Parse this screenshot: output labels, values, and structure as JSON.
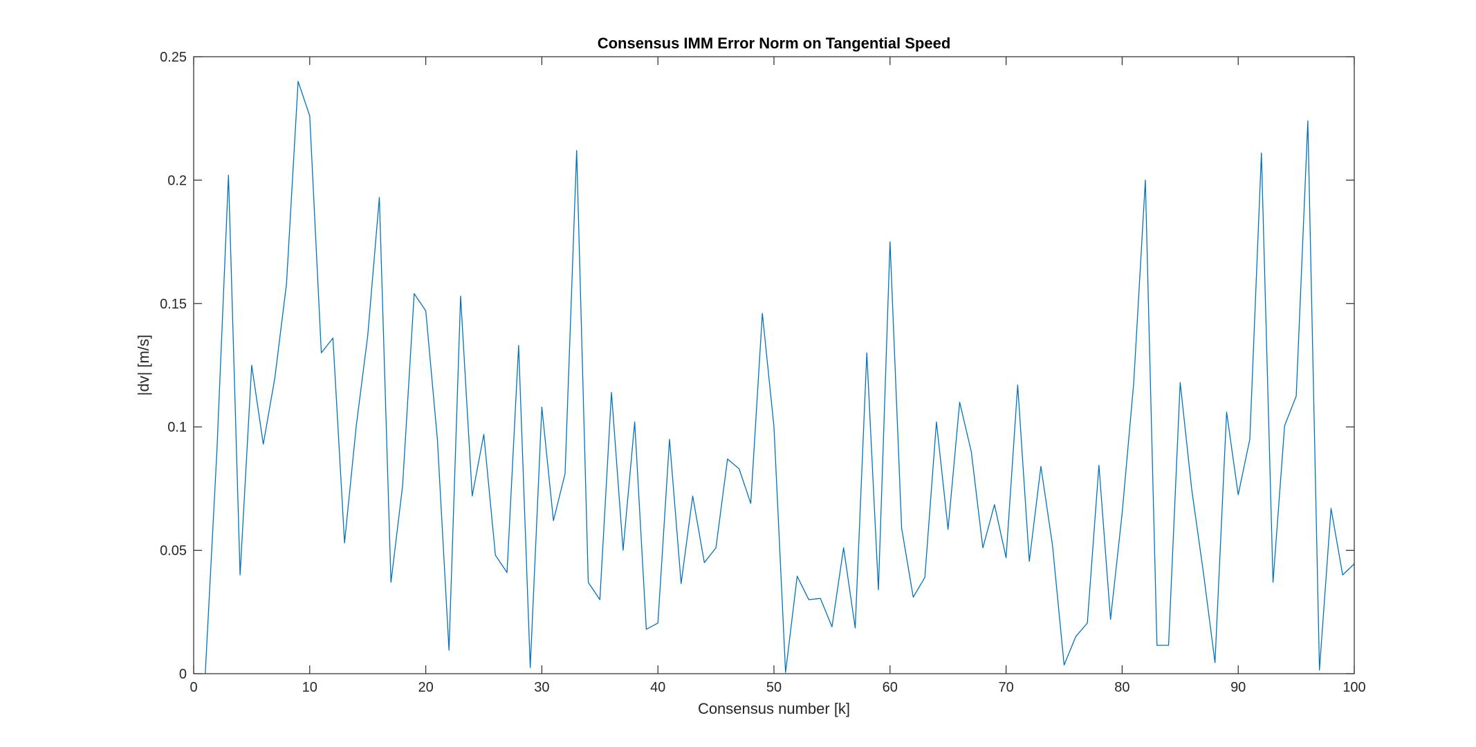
{
  "chart_data": {
    "type": "line",
    "title": "Consensus IMM Error Norm on Tangential Speed",
    "xlabel": "Consensus number [k]",
    "ylabel": "|dv| [m/s]",
    "xlim": [
      0,
      100
    ],
    "ylim": [
      0,
      0.25
    ],
    "xticks": [
      0,
      10,
      20,
      30,
      40,
      50,
      60,
      70,
      80,
      90,
      100
    ],
    "xtick_labels": [
      "0",
      "10",
      "20",
      "30",
      "40",
      "50",
      "60",
      "70",
      "80",
      "90",
      "100"
    ],
    "yticks": [
      0,
      0.05,
      0.1,
      0.15,
      0.2,
      0.25
    ],
    "ytick_labels": [
      "0",
      "0.05",
      "0.1",
      "0.15",
      "0.2",
      "0.25"
    ],
    "grid": false,
    "box": true,
    "series": [
      {
        "color": "#0072BD",
        "x": [
          1,
          2,
          3,
          4,
          5,
          6,
          7,
          8,
          9,
          10,
          11,
          12,
          13,
          14,
          15,
          16,
          17,
          18,
          19,
          20,
          21,
          22,
          23,
          24,
          25,
          26,
          27,
          28,
          29,
          30,
          31,
          32,
          33,
          34,
          35,
          36,
          37,
          38,
          39,
          40,
          41,
          42,
          43,
          44,
          45,
          46,
          47,
          48,
          49,
          50,
          51,
          52,
          53,
          54,
          55,
          56,
          57,
          58,
          59,
          60,
          61,
          62,
          63,
          64,
          65,
          66,
          67,
          68,
          69,
          70,
          71,
          72,
          73,
          74,
          75,
          76,
          77,
          78,
          79,
          80,
          81,
          82,
          83,
          84,
          85,
          86,
          87,
          88,
          89,
          90,
          91,
          92,
          93,
          94,
          95,
          96,
          97,
          98,
          99,
          100
        ],
        "y": [
          0.0,
          0.09,
          0.202,
          0.04,
          0.125,
          0.093,
          0.12,
          0.158,
          0.24,
          0.226,
          0.13,
          0.136,
          0.053,
          0.1,
          0.137,
          0.193,
          0.037,
          0.076,
          0.154,
          0.147,
          0.095,
          0.0095,
          0.153,
          0.072,
          0.097,
          0.048,
          0.041,
          0.133,
          0.0025,
          0.108,
          0.062,
          0.081,
          0.212,
          0.037,
          0.03,
          0.114,
          0.05,
          0.102,
          0.018,
          0.0205,
          0.095,
          0.0365,
          0.072,
          0.045,
          0.051,
          0.087,
          0.083,
          0.069,
          0.146,
          0.1,
          0.0005,
          0.0395,
          0.03,
          0.0305,
          0.019,
          0.051,
          0.0185,
          0.13,
          0.034,
          0.175,
          0.059,
          0.031,
          0.039,
          0.102,
          0.0585,
          0.11,
          0.09,
          0.051,
          0.0685,
          0.047,
          0.117,
          0.0455,
          0.084,
          0.052,
          0.0035,
          0.015,
          0.0205,
          0.0845,
          0.022,
          0.065,
          0.118,
          0.2,
          0.0115,
          0.0115,
          0.118,
          0.0745,
          0.041,
          0.0045,
          0.106,
          0.0725,
          0.095,
          0.211,
          0.037,
          0.1005,
          0.1125,
          0.224,
          0.0015,
          0.067,
          0.04,
          0.0445
        ]
      }
    ]
  }
}
